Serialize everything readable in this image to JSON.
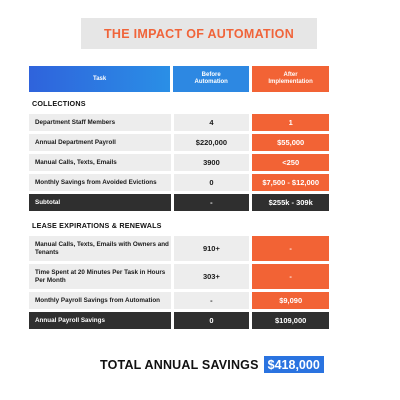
{
  "title": "THE IMPACT OF AUTOMATION",
  "headers": {
    "task": "Task",
    "before": "Before\nAutomation",
    "after": "After\nImplementation"
  },
  "sections": [
    {
      "name": "COLLECTIONS",
      "rows": [
        {
          "task": "Department Staff Members",
          "before": "4",
          "after": "1",
          "dark": false
        },
        {
          "task": "Annual Department Payroll",
          "before": "$220,000",
          "after": "$55,000",
          "dark": false
        },
        {
          "task": "Manual Calls, Texts, Emails",
          "before": "3900",
          "after": "<250",
          "dark": false
        },
        {
          "task": "Monthly Savings from Avoided Evictions",
          "before": "0",
          "after": "$7,500 - $12,000",
          "dark": false
        },
        {
          "task": "Subtotal",
          "before": "-",
          "after": "$255k - 309k",
          "dark": true
        }
      ]
    },
    {
      "name": "LEASE EXPIRATIONS & RENEWALS",
      "rows": [
        {
          "task": "Manual Calls, Texts, Emails with Owners and Tenants",
          "before": "910+",
          "after": "-",
          "dark": false
        },
        {
          "task": "Time Spent at 20 Minutes Per Task in Hours Per Month",
          "before": "303+",
          "after": "-",
          "dark": false
        },
        {
          "task": "Monthly Payroll Savings from Automation",
          "before": "-",
          "after": "$9,090",
          "dark": false
        },
        {
          "task": "Annual Payroll Savings",
          "before": "0",
          "after": "$109,000",
          "dark": true
        }
      ]
    }
  ],
  "total": {
    "label": "TOTAL ANNUAL SAVINGS",
    "value": "$418,000"
  },
  "colors": {
    "accent_orange": "#f26335",
    "accent_blue": "#2a73e0",
    "dark_row": "#2f2f2f",
    "light_row": "#ededed"
  }
}
